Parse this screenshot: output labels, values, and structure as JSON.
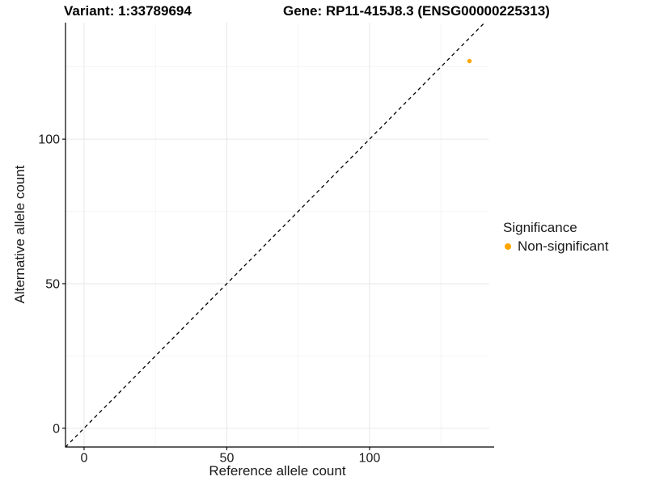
{
  "header": {
    "variant_title": "Variant: 1:33789694",
    "gene_title": "Gene: RP11-415J8.3 (ENSG00000225313)"
  },
  "legend": {
    "title": "Significance",
    "items": [
      {
        "label": "Non-significant",
        "color": "#FFA500",
        "marker": "circle"
      }
    ]
  },
  "chart_data": {
    "type": "scatter",
    "title": "Variant: 1:33789694    Gene: RP11-415J8.3 (ENSG00000225313)",
    "xlabel": "Reference allele count",
    "ylabel": "Alternative allele count",
    "xlim": [
      -6.5,
      141.8
    ],
    "ylim": [
      -6.5,
      140.3
    ],
    "x_ticks": [
      0,
      50,
      100
    ],
    "y_ticks": [
      0,
      50,
      100
    ],
    "x_minor_ticks": [
      25,
      75,
      125
    ],
    "y_minor_ticks": [
      25,
      75,
      125
    ],
    "grid": true,
    "legend_position": "right",
    "series": [
      {
        "name": "Non-significant",
        "color": "#FFA500",
        "points": [
          {
            "x": 135,
            "y": 127
          }
        ]
      }
    ],
    "reference_line": {
      "type": "identity",
      "slope": 1,
      "intercept": 0,
      "style": "dashed",
      "color": "#000000"
    },
    "panel": {
      "background": "#ffffff",
      "grid_major_color": "#e9e9e9",
      "grid_minor_color": "#f4f4f4",
      "axis_line_color": "#000000",
      "tick_text_color": "#1a1a1a"
    }
  }
}
